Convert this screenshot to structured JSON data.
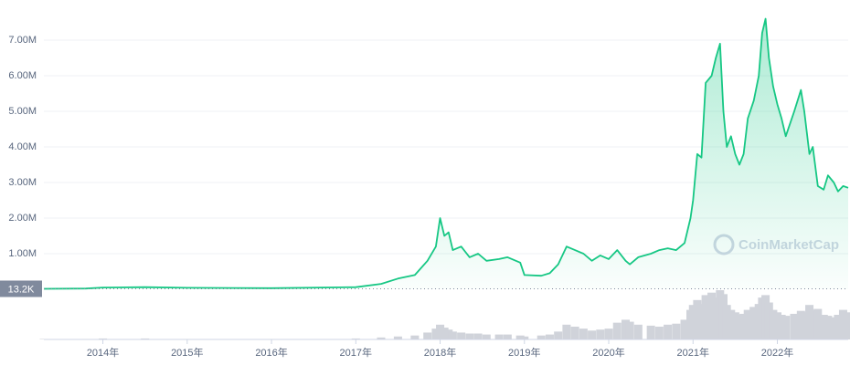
{
  "chart_data": {
    "type": "area",
    "watermark": "CoinMarketCap",
    "reference_line": {
      "value": 13200,
      "label": "13.2K"
    },
    "x": [
      2013.3,
      2013.8,
      2014.0,
      2014.5,
      2015.0,
      2016.0,
      2017.0,
      2017.3,
      2017.5,
      2017.7,
      2017.85,
      2017.95,
      2018.0,
      2018.05,
      2018.1,
      2018.15,
      2018.25,
      2018.35,
      2018.45,
      2018.55,
      2018.7,
      2018.8,
      2018.95,
      2019.0,
      2019.2,
      2019.3,
      2019.4,
      2019.5,
      2019.6,
      2019.7,
      2019.8,
      2019.9,
      2020.0,
      2020.1,
      2020.2,
      2020.25,
      2020.35,
      2020.5,
      2020.6,
      2020.7,
      2020.8,
      2020.9,
      2020.97,
      2021.0,
      2021.05,
      2021.1,
      2021.15,
      2021.22,
      2021.27,
      2021.32,
      2021.36,
      2021.4,
      2021.45,
      2021.5,
      2021.55,
      2021.6,
      2021.65,
      2021.72,
      2021.78,
      2021.82,
      2021.86,
      2021.9,
      2021.95,
      2022.0,
      2022.05,
      2022.1,
      2022.2,
      2022.28,
      2022.32,
      2022.38,
      2022.42,
      2022.48,
      2022.55,
      2022.6,
      2022.67,
      2022.72,
      2022.78,
      2022.84
    ],
    "series": [
      {
        "color": "#16c784",
        "values": [
          13200,
          20000,
          50000,
          60000,
          40000,
          30000,
          60000,
          150000,
          300000,
          400000,
          800000,
          1200000,
          2000000,
          1500000,
          1600000,
          1100000,
          1200000,
          900000,
          1000000,
          800000,
          850000,
          900000,
          750000,
          400000,
          380000,
          450000,
          700000,
          1200000,
          1100000,
          1000000,
          800000,
          950000,
          850000,
          1100000,
          800000,
          700000,
          900000,
          1000000,
          1100000,
          1150000,
          1100000,
          1300000,
          2000000,
          2500000,
          3800000,
          3700000,
          5800000,
          6000000,
          6500000,
          6900000,
          5000000,
          4000000,
          4300000,
          3800000,
          3500000,
          3800000,
          4800000,
          5300000,
          6000000,
          7200000,
          7600000,
          6500000,
          5700000,
          5200000,
          4800000,
          4300000,
          5000000,
          5600000,
          5000000,
          3800000,
          4000000,
          2900000,
          2800000,
          3200000,
          3000000,
          2750000,
          2900000,
          2850000
        ]
      }
    ],
    "volume": {
      "color": "#d0d3da",
      "values": [
        1,
        1,
        2,
        2,
        1,
        1,
        2,
        4,
        6,
        8,
        14,
        22,
        30,
        24,
        20,
        16,
        14,
        12,
        12,
        10,
        10,
        10,
        8,
        6,
        8,
        10,
        16,
        30,
        26,
        22,
        18,
        20,
        22,
        34,
        40,
        36,
        30,
        28,
        26,
        30,
        32,
        40,
        60,
        70,
        80,
        72,
        90,
        95,
        85,
        100,
        92,
        70,
        60,
        55,
        50,
        52,
        60,
        66,
        72,
        85,
        90,
        75,
        60,
        55,
        50,
        48,
        52,
        58,
        55,
        70,
        60,
        62,
        50,
        48,
        45,
        50,
        60,
        55
      ]
    },
    "y2lim": [
      0,
      100
    ],
    "xlim": [
      2013.3,
      2022.84
    ],
    "ylim": [
      0,
      8000000
    ],
    "yticks": [
      {
        "value": 1000000,
        "label": "1.00M"
      },
      {
        "value": 2000000,
        "label": "2.00M"
      },
      {
        "value": 3000000,
        "label": "3.00M"
      },
      {
        "value": 4000000,
        "label": "4.00M"
      },
      {
        "value": 5000000,
        "label": "5.00M"
      },
      {
        "value": 6000000,
        "label": "6.00M"
      },
      {
        "value": 7000000,
        "label": "7.00M"
      }
    ],
    "xticks": [
      {
        "value": 2014,
        "label": "2014年"
      },
      {
        "value": 2015,
        "label": "2015年"
      },
      {
        "value": 2016,
        "label": "2016年"
      },
      {
        "value": 2017,
        "label": "2017年"
      },
      {
        "value": 2018,
        "label": "2018年"
      },
      {
        "value": 2019,
        "label": "2019年"
      },
      {
        "value": 2020,
        "label": "2020年"
      },
      {
        "value": 2021,
        "label": "2021年"
      },
      {
        "value": 2022,
        "label": "2022年"
      }
    ],
    "grid": true
  }
}
